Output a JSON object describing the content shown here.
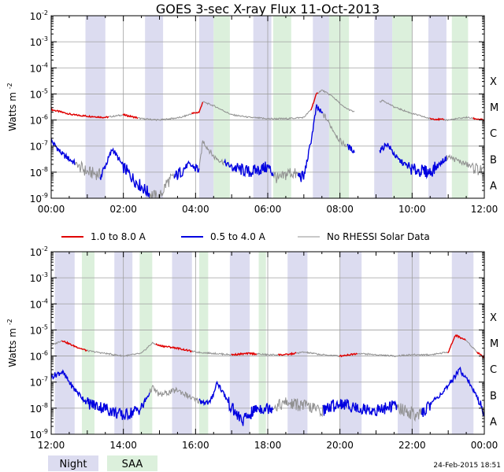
{
  "title": "GOES 3-sec X-ray Flux   11-Oct-2013",
  "timestamp": "24-Feb-2015 18:51",
  "ylabel": "Watts m",
  "ylabel_sup": "-2",
  "legend": [
    {
      "label": "1.0 to 8.0 A",
      "color": "#e00000"
    },
    {
      "label": "0.5 to 4.0 A",
      "color": "#0000e0"
    },
    {
      "label": "No RHESSI Solar Data",
      "color": "#909090"
    }
  ],
  "bottom_legend": [
    {
      "label": "Night",
      "color": "#dcdcf0"
    },
    {
      "label": "SAA",
      "color": "#dcf0dc"
    }
  ],
  "chart_data": [
    {
      "type": "line",
      "panel": "top",
      "x_unit": "hours UT",
      "xlim": [
        0,
        12
      ],
      "xticks": [
        0,
        2,
        4,
        6,
        8,
        10,
        12
      ],
      "xtick_labels": [
        "00:00",
        "02:00",
        "04:00",
        "06:00",
        "08:00",
        "10:00",
        "12:00"
      ],
      "ylim_log10": [
        -9,
        -2
      ],
      "ytick_exponents": [
        -9,
        -8,
        -7,
        -6,
        -5,
        -4,
        -3,
        -2
      ],
      "flare_classes": [
        {
          "label": "X",
          "log": -4
        },
        {
          "label": "M",
          "log": -5
        },
        {
          "label": "C",
          "log": -6
        },
        {
          "label": "B",
          "log": -7
        },
        {
          "label": "A",
          "log": -8
        }
      ],
      "night_intervals": [
        [
          0.95,
          1.5
        ],
        [
          2.6,
          3.1
        ],
        [
          4.1,
          4.5
        ],
        [
          5.6,
          6.1
        ],
        [
          7.25,
          7.7
        ],
        [
          8.95,
          9.45
        ],
        [
          10.45,
          10.95
        ]
      ],
      "saa_intervals": [
        [
          4.5,
          4.95
        ],
        [
          6.15,
          6.65
        ],
        [
          7.7,
          8.25
        ],
        [
          9.45,
          10.0
        ],
        [
          11.1,
          11.55
        ]
      ],
      "series": [
        {
          "name": "1.0 to 8.0 A",
          "color": "#e00000",
          "x": [
            0,
            0.3,
            0.6,
            1.0,
            1.5,
            2.0,
            2.5,
            3.0,
            3.3,
            3.6,
            3.9,
            4.1,
            4.2,
            4.5,
            5.0,
            5.5,
            6.0,
            6.5,
            7.0,
            7.2,
            7.35,
            7.5,
            7.8,
            8.1,
            8.4,
            9.1,
            9.2,
            9.5,
            10.0,
            10.5,
            11.0,
            11.5,
            12.0
          ],
          "y": [
            -5.6,
            -5.7,
            -5.8,
            -5.85,
            -5.9,
            -5.8,
            -5.95,
            -6.0,
            -5.95,
            -5.9,
            -5.75,
            -5.7,
            -5.3,
            -5.45,
            -5.8,
            -5.9,
            -5.95,
            -5.95,
            -5.9,
            -5.6,
            -5.0,
            -4.85,
            -5.1,
            -5.5,
            -5.7,
            -5.3,
            -5.25,
            -5.5,
            -5.75,
            -5.95,
            -6.0,
            -5.9,
            -6.0
          ],
          "red_ranges": [
            [
              0,
              1.6
            ],
            [
              2.0,
              2.4
            ],
            [
              3.9,
              4.2
            ],
            [
              7.2,
              7.4
            ],
            [
              10.5,
              10.9
            ],
            [
              11.7,
              12.0
            ]
          ]
        },
        {
          "name": "0.5 to 4.0 A",
          "color": "#0000e0",
          "x": [
            0,
            0.3,
            0.6,
            1.0,
            1.4,
            1.7,
            2.0,
            2.3,
            2.7,
            3.0,
            3.2,
            3.5,
            3.8,
            4.1,
            4.2,
            4.5,
            5.0,
            5.5,
            6.0,
            6.3,
            6.6,
            7.0,
            7.2,
            7.35,
            7.6,
            8.0,
            8.4,
            9.1,
            9.3,
            9.6,
            10.0,
            10.5,
            11.0,
            11.5,
            12.0
          ],
          "y": [
            -6.8,
            -7.3,
            -7.6,
            -8.0,
            -8.1,
            -7.1,
            -7.8,
            -8.3,
            -8.8,
            -9.0,
            -8.4,
            -8.1,
            -7.7,
            -7.9,
            -6.8,
            -7.4,
            -7.8,
            -8.0,
            -7.8,
            -8.3,
            -8.0,
            -8.2,
            -6.8,
            -5.5,
            -5.9,
            -6.8,
            -7.2,
            -7.2,
            -6.9,
            -7.5,
            -7.9,
            -8.0,
            -7.4,
            -7.7,
            -8.0
          ]
        }
      ]
    },
    {
      "type": "line",
      "panel": "bottom",
      "x_unit": "hours UT",
      "xlim": [
        12,
        24
      ],
      "xticks": [
        12,
        14,
        16,
        18,
        20,
        22,
        24
      ],
      "xtick_labels": [
        "12:00",
        "14:00",
        "16:00",
        "18:00",
        "20:00",
        "22:00",
        "00:00"
      ],
      "ylim_log10": [
        -9,
        -2
      ],
      "ytick_exponents": [
        -9,
        -8,
        -7,
        -6,
        -5,
        -4,
        -3,
        -2
      ],
      "flare_classes": [
        {
          "label": "X",
          "log": -4
        },
        {
          "label": "M",
          "log": -5
        },
        {
          "label": "C",
          "log": -6
        },
        {
          "label": "B",
          "log": -7
        },
        {
          "label": "A",
          "log": -8
        }
      ],
      "night_intervals": [
        [
          12.1,
          12.65
        ],
        [
          13.75,
          14.25
        ],
        [
          15.35,
          15.9
        ],
        [
          16.95,
          17.5
        ],
        [
          18.55,
          19.1
        ],
        [
          20.0,
          20.6
        ],
        [
          21.6,
          22.2
        ],
        [
          23.1,
          23.7
        ]
      ],
      "saa_intervals": [
        [
          12.85,
          13.2
        ],
        [
          14.45,
          14.8
        ],
        [
          16.1,
          16.35
        ],
        [
          17.75,
          17.95
        ]
      ],
      "series": [
        {
          "name": "1.0 to 8.0 A",
          "color": "#e00000",
          "x": [
            12,
            12.3,
            12.6,
            13.0,
            13.5,
            14.0,
            14.5,
            14.8,
            15.0,
            15.5,
            16.0,
            16.5,
            17.0,
            17.5,
            18.0,
            18.5,
            19.0,
            19.5,
            20.0,
            20.5,
            21.0,
            21.5,
            22.0,
            22.5,
            23.0,
            23.2,
            23.5,
            23.8,
            24.0
          ],
          "y": [
            -5.6,
            -5.4,
            -5.6,
            -5.8,
            -5.9,
            -6.0,
            -5.9,
            -5.5,
            -5.6,
            -5.7,
            -5.85,
            -5.9,
            -5.95,
            -5.9,
            -5.95,
            -5.95,
            -5.85,
            -5.95,
            -6.0,
            -5.9,
            -5.95,
            -6.0,
            -5.95,
            -5.95,
            -5.85,
            -5.2,
            -5.4,
            -5.85,
            -6.05
          ],
          "red_ranges": [
            [
              12.3,
              13.0
            ],
            [
              14.9,
              15.9
            ],
            [
              17.0,
              17.7
            ],
            [
              18.3,
              18.8
            ],
            [
              20.0,
              20.5
            ],
            [
              23.0,
              23.5
            ],
            [
              23.8,
              24.0
            ]
          ]
        },
        {
          "name": "0.5 to 4.0 A",
          "color": "#0000e0",
          "x": [
            12,
            12.3,
            12.6,
            13.0,
            13.5,
            14.0,
            14.5,
            14.8,
            15.0,
            15.5,
            16.0,
            16.4,
            16.6,
            17.0,
            17.3,
            17.7,
            18.0,
            18.5,
            19.0,
            19.5,
            20.0,
            20.5,
            21.0,
            21.5,
            21.8,
            22.2,
            22.6,
            23.0,
            23.3,
            23.5,
            23.8,
            24.0
          ],
          "y": [
            -6.8,
            -6.6,
            -7.2,
            -7.8,
            -8.0,
            -8.3,
            -8.0,
            -7.2,
            -7.5,
            -7.3,
            -7.7,
            -7.8,
            -7.0,
            -8.0,
            -8.5,
            -8.0,
            -8.0,
            -7.8,
            -7.9,
            -8.1,
            -7.8,
            -8.0,
            -8.1,
            -7.9,
            -8.1,
            -8.3,
            -7.7,
            -7.2,
            -6.5,
            -6.8,
            -7.6,
            -8.2
          ]
        }
      ]
    }
  ]
}
